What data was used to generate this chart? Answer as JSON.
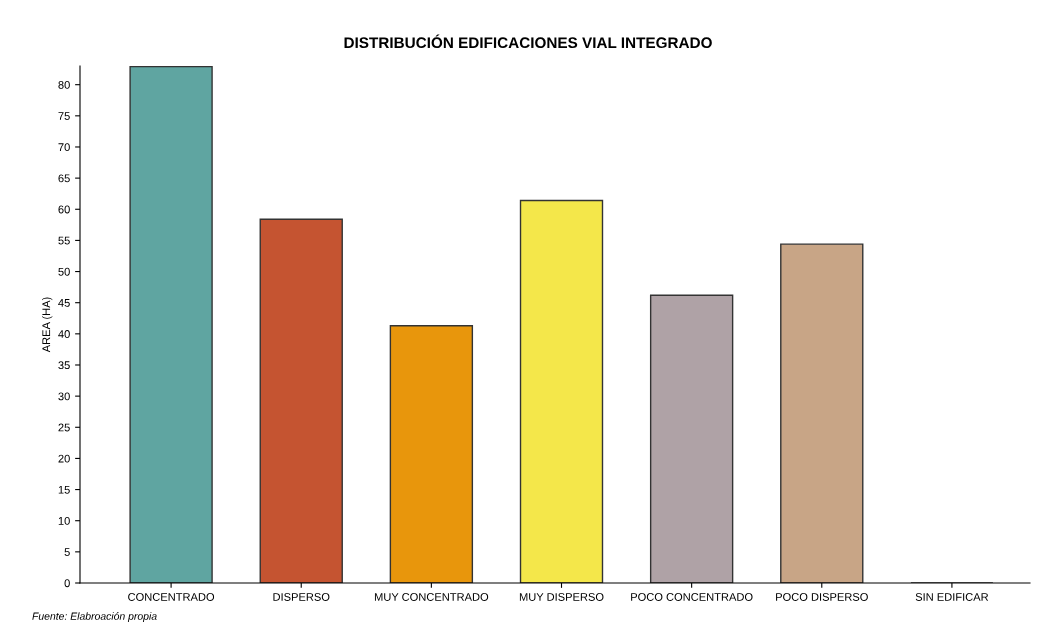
{
  "chart_data": {
    "type": "bar",
    "title": "DISTRIBUCIÓN EDIFICACIONES VIAL INTEGRADO",
    "ylabel": "AREA (HA)",
    "categories": [
      "CONCENTRADO",
      "DISPERSO",
      "MUY CONCENTRADO",
      "MUY DISPERSO",
      "POCO CONCENTRADO",
      "POCO DISPERSO",
      "SIN EDIFICAR"
    ],
    "values": [
      82.9,
      58.4,
      41.3,
      61.4,
      46.2,
      54.4,
      0
    ],
    "colors": [
      "#5fa5a1",
      "#c55431",
      "#e8960c",
      "#f4e74a",
      "#afa2a6",
      "#c8a586",
      "#333333"
    ],
    "ylim": [
      0,
      83
    ],
    "yticks": [
      0,
      5,
      10,
      15,
      20,
      25,
      30,
      35,
      40,
      45,
      50,
      55,
      60,
      65,
      70,
      75,
      80
    ],
    "grid": false,
    "annotations": [
      "Fuente: Elabroación propia"
    ]
  }
}
